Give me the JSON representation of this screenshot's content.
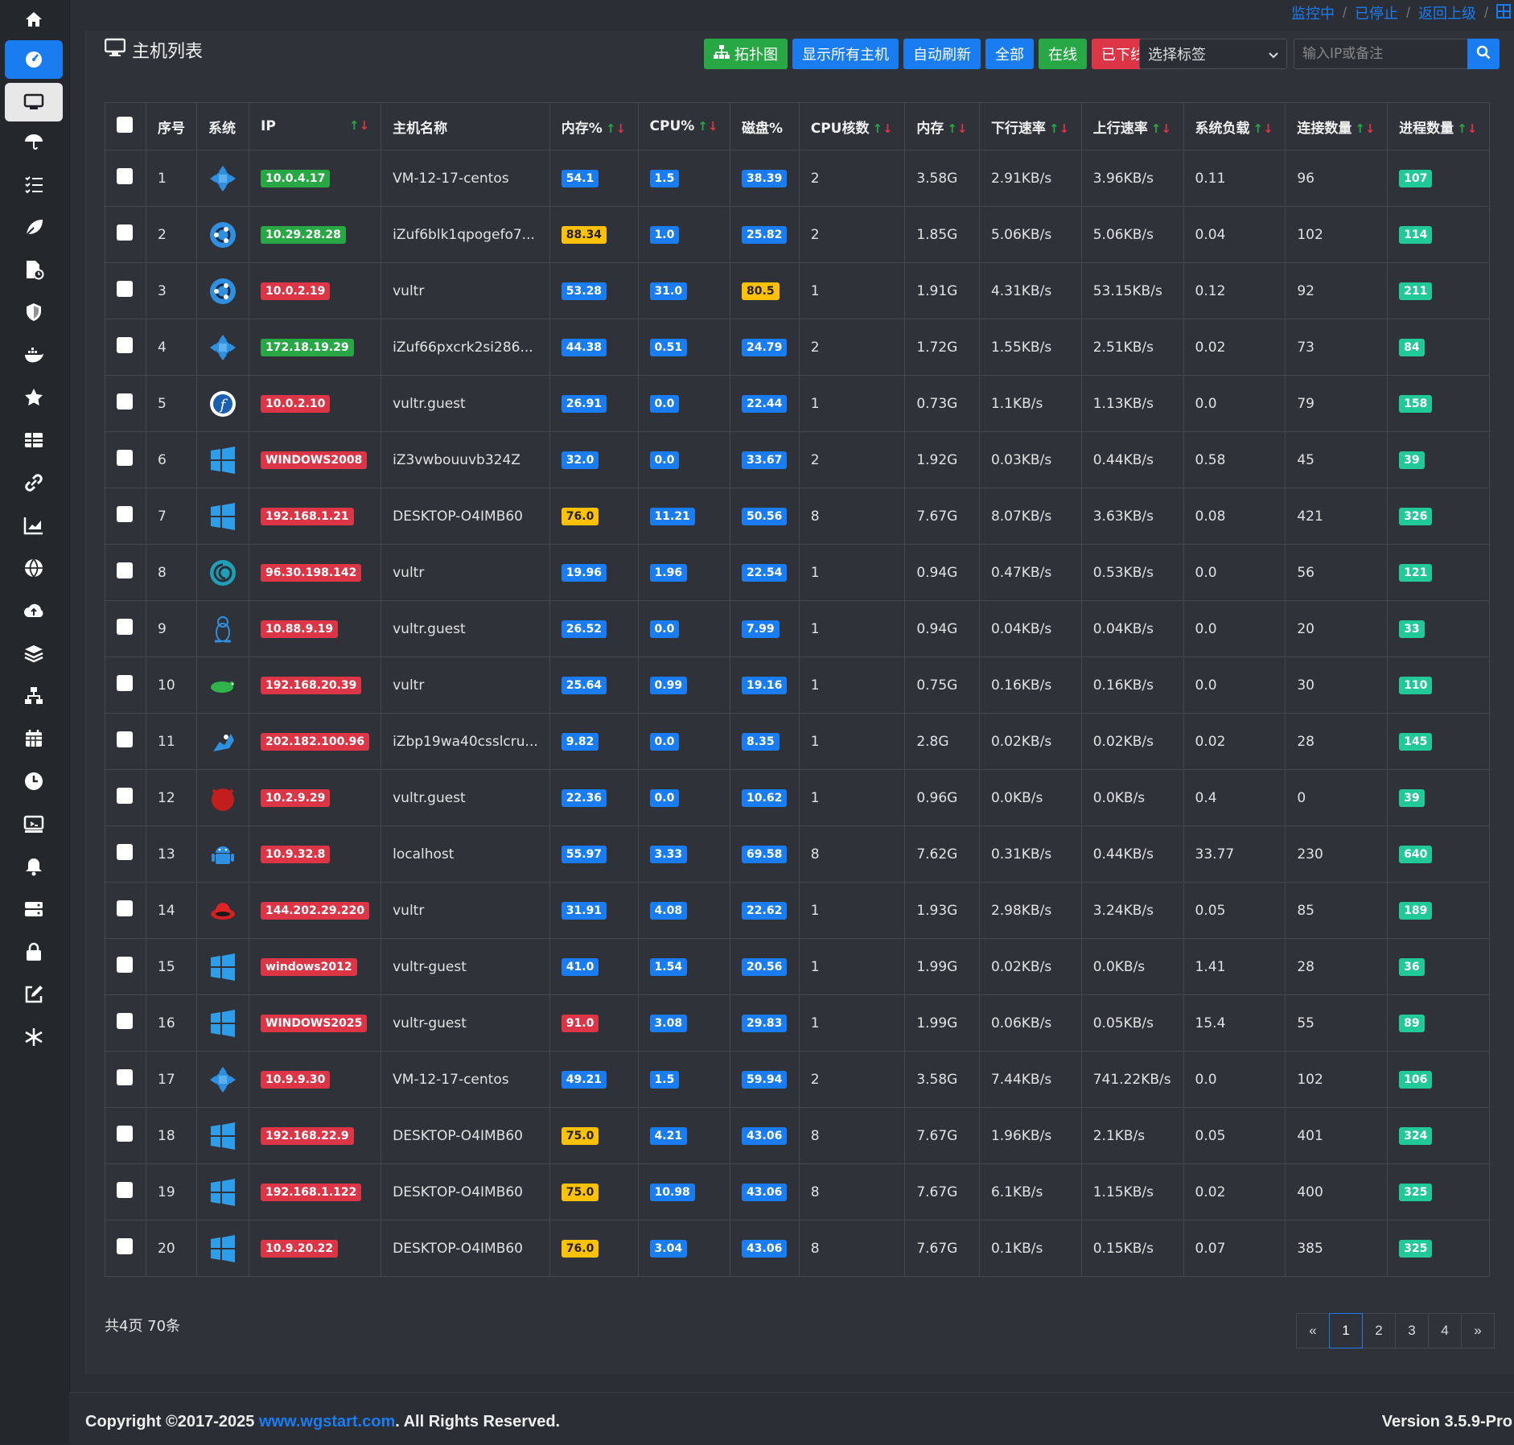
{
  "breadcrumb": {
    "items": [
      "监控中",
      "已停止",
      "返回上级"
    ]
  },
  "page": {
    "title": "主机列表"
  },
  "toolbar": {
    "topology": "拓扑图",
    "show_all": "显示所有主机",
    "auto_refresh": "自动刷新",
    "all": "全部",
    "online": "在线",
    "offline": "已下线",
    "tag_select": "选择标签",
    "search_placeholder": "输入IP或备注"
  },
  "colors": {
    "accent": "#1a7cf1",
    "green": "#28a745",
    "red": "#dc3545",
    "yellow": "#ffc107",
    "teal": "#20c997"
  },
  "table": {
    "headers": {
      "index": "序号",
      "os": "系统",
      "ip": "IP",
      "hostname": "主机名称",
      "mem_pct": "内存%",
      "cpu_pct": "CPU%",
      "disk_pct": "磁盘%",
      "cpu_cores": "CPU核数",
      "mem": "内存",
      "down": "下行速率",
      "up": "上行速率",
      "load": "系统负载",
      "conns": "连接数量",
      "procs": "进程数量"
    },
    "rows": [
      {
        "idx": "1",
        "os": "centos",
        "ip": "10.0.4.17",
        "ip_c": "green",
        "host": "VM-12-17-centos",
        "mem_p": "54.1",
        "mem_c": "blue",
        "cpu": "1.5",
        "cpu_c": "blue",
        "disk": "38.39",
        "disk_c": "blue",
        "cores": "2",
        "mem": "3.58G",
        "down": "2.91KB/s",
        "up": "3.96KB/s",
        "load": "0.11",
        "conns": "96",
        "procs": "107"
      },
      {
        "idx": "2",
        "os": "ubuntu",
        "ip": "10.29.28.28",
        "ip_c": "green",
        "host": "iZuf6blk1qpogefo7...",
        "mem_p": "88.34",
        "mem_c": "yellow",
        "cpu": "1.0",
        "cpu_c": "blue",
        "disk": "25.82",
        "disk_c": "blue",
        "cores": "2",
        "mem": "1.85G",
        "down": "5.06KB/s",
        "up": "5.06KB/s",
        "load": "0.04",
        "conns": "102",
        "procs": "114"
      },
      {
        "idx": "3",
        "os": "ubuntu",
        "ip": "10.0.2.19",
        "ip_c": "red",
        "host": "vultr",
        "mem_p": "53.28",
        "mem_c": "blue",
        "cpu": "31.0",
        "cpu_c": "blue",
        "disk": "80.5",
        "disk_c": "yellow",
        "cores": "1",
        "mem": "1.91G",
        "down": "4.31KB/s",
        "up": "53.15KB/s",
        "load": "0.12",
        "conns": "92",
        "procs": "211"
      },
      {
        "idx": "4",
        "os": "centos",
        "ip": "172.18.19.29",
        "ip_c": "green",
        "host": "iZuf66pxcrk2si286...",
        "mem_p": "44.38",
        "mem_c": "blue",
        "cpu": "0.51",
        "cpu_c": "blue",
        "disk": "24.79",
        "disk_c": "blue",
        "cores": "2",
        "mem": "1.72G",
        "down": "1.55KB/s",
        "up": "2.51KB/s",
        "load": "0.02",
        "conns": "73",
        "procs": "84"
      },
      {
        "idx": "5",
        "os": "fedora",
        "ip": "10.0.2.10",
        "ip_c": "red",
        "host": "vultr.guest",
        "mem_p": "26.91",
        "mem_c": "blue",
        "cpu": "0.0",
        "cpu_c": "blue",
        "disk": "22.44",
        "disk_c": "blue",
        "cores": "1",
        "mem": "0.73G",
        "down": "1.1KB/s",
        "up": "1.13KB/s",
        "load": "0.0",
        "conns": "79",
        "procs": "158"
      },
      {
        "idx": "6",
        "os": "windows",
        "ip": "WINDOWS2008",
        "ip_c": "red",
        "host": "iZ3vwbouuvb324Z",
        "mem_p": "32.0",
        "mem_c": "blue",
        "cpu": "0.0",
        "cpu_c": "blue",
        "disk": "33.67",
        "disk_c": "blue",
        "cores": "2",
        "mem": "1.92G",
        "down": "0.03KB/s",
        "up": "0.44KB/s",
        "load": "0.58",
        "conns": "45",
        "procs": "39"
      },
      {
        "idx": "7",
        "os": "windows",
        "ip": "192.168.1.21",
        "ip_c": "red",
        "host": "DESKTOP-O4IMB60",
        "mem_p": "76.0",
        "mem_c": "yellow",
        "cpu": "11.21",
        "cpu_c": "blue",
        "disk": "50.56",
        "disk_c": "blue",
        "cores": "8",
        "mem": "7.67G",
        "down": "8.07KB/s",
        "up": "3.63KB/s",
        "load": "0.08",
        "conns": "421",
        "procs": "326"
      },
      {
        "idx": "8",
        "os": "debian",
        "ip": "96.30.198.142",
        "ip_c": "red",
        "host": "vultr",
        "mem_p": "19.96",
        "mem_c": "blue",
        "cpu": "1.96",
        "cpu_c": "blue",
        "disk": "22.54",
        "disk_c": "blue",
        "cores": "1",
        "mem": "0.94G",
        "down": "0.47KB/s",
        "up": "0.53KB/s",
        "load": "0.0",
        "conns": "56",
        "procs": "121"
      },
      {
        "idx": "9",
        "os": "linux",
        "ip": "10.88.9.19",
        "ip_c": "red",
        "host": "vultr.guest",
        "mem_p": "26.52",
        "mem_c": "blue",
        "cpu": "0.0",
        "cpu_c": "blue",
        "disk": "7.99",
        "disk_c": "blue",
        "cores": "1",
        "mem": "0.94G",
        "down": "0.04KB/s",
        "up": "0.04KB/s",
        "load": "0.0",
        "conns": "20",
        "procs": "33"
      },
      {
        "idx": "10",
        "os": "suse",
        "ip": "192.168.20.39",
        "ip_c": "red",
        "host": "vultr",
        "mem_p": "25.64",
        "mem_c": "blue",
        "cpu": "0.99",
        "cpu_c": "blue",
        "disk": "19.16",
        "disk_c": "blue",
        "cores": "1",
        "mem": "0.75G",
        "down": "0.16KB/s",
        "up": "0.16KB/s",
        "load": "0.0",
        "conns": "30",
        "procs": "110"
      },
      {
        "idx": "11",
        "os": "freebsd",
        "ip": "202.182.100.96",
        "ip_c": "red",
        "host": "iZbp19wa40csslcru...",
        "mem_p": "9.82",
        "mem_c": "blue",
        "cpu": "0.0",
        "cpu_c": "blue",
        "disk": "8.35",
        "disk_c": "blue",
        "cores": "1",
        "mem": "2.8G",
        "down": "0.02KB/s",
        "up": "0.02KB/s",
        "load": "0.02",
        "conns": "28",
        "procs": "145"
      },
      {
        "idx": "12",
        "os": "bsd",
        "ip": "10.2.9.29",
        "ip_c": "red",
        "host": "vultr.guest",
        "mem_p": "22.36",
        "mem_c": "blue",
        "cpu": "0.0",
        "cpu_c": "blue",
        "disk": "10.62",
        "disk_c": "blue",
        "cores": "1",
        "mem": "0.96G",
        "down": "0.0KB/s",
        "up": "0.0KB/s",
        "load": "0.4",
        "conns": "0",
        "procs": "39"
      },
      {
        "idx": "13",
        "os": "android",
        "ip": "10.9.32.8",
        "ip_c": "red",
        "host": "localhost",
        "mem_p": "55.97",
        "mem_c": "blue",
        "cpu": "3.33",
        "cpu_c": "blue",
        "disk": "69.58",
        "disk_c": "blue",
        "cores": "8",
        "mem": "7.62G",
        "down": "0.31KB/s",
        "up": "0.44KB/s",
        "load": "33.77",
        "conns": "230",
        "procs": "640"
      },
      {
        "idx": "14",
        "os": "redhat",
        "ip": "144.202.29.220",
        "ip_c": "red",
        "host": "vultr",
        "mem_p": "31.91",
        "mem_c": "blue",
        "cpu": "4.08",
        "cpu_c": "blue",
        "disk": "22.62",
        "disk_c": "blue",
        "cores": "1",
        "mem": "1.93G",
        "down": "2.98KB/s",
        "up": "3.24KB/s",
        "load": "0.05",
        "conns": "85",
        "procs": "189"
      },
      {
        "idx": "15",
        "os": "windows",
        "ip": "windows2012",
        "ip_c": "red",
        "host": "vultr-guest",
        "mem_p": "41.0",
        "mem_c": "blue",
        "cpu": "1.54",
        "cpu_c": "blue",
        "disk": "20.56",
        "disk_c": "blue",
        "cores": "1",
        "mem": "1.99G",
        "down": "0.02KB/s",
        "up": "0.0KB/s",
        "load": "1.41",
        "conns": "28",
        "procs": "36"
      },
      {
        "idx": "16",
        "os": "windows",
        "ip": "WINDOWS2025",
        "ip_c": "red",
        "host": "vultr-guest",
        "mem_p": "91.0",
        "mem_c": "red",
        "cpu": "3.08",
        "cpu_c": "blue",
        "disk": "29.83",
        "disk_c": "blue",
        "cores": "1",
        "mem": "1.99G",
        "down": "0.06KB/s",
        "up": "0.05KB/s",
        "load": "15.4",
        "conns": "55",
        "procs": "89"
      },
      {
        "idx": "17",
        "os": "centos",
        "ip": "10.9.9.30",
        "ip_c": "red",
        "host": "VM-12-17-centos",
        "mem_p": "49.21",
        "mem_c": "blue",
        "cpu": "1.5",
        "cpu_c": "blue",
        "disk": "59.94",
        "disk_c": "blue",
        "cores": "2",
        "mem": "3.58G",
        "down": "7.44KB/s",
        "up": "741.22KB/s",
        "load": "0.0",
        "conns": "102",
        "procs": "106"
      },
      {
        "idx": "18",
        "os": "windows",
        "ip": "192.168.22.9",
        "ip_c": "red",
        "host": "DESKTOP-O4IMB60",
        "mem_p": "75.0",
        "mem_c": "yellow",
        "cpu": "4.21",
        "cpu_c": "blue",
        "disk": "43.06",
        "disk_c": "blue",
        "cores": "8",
        "mem": "7.67G",
        "down": "1.96KB/s",
        "up": "2.1KB/s",
        "load": "0.05",
        "conns": "401",
        "procs": "324"
      },
      {
        "idx": "19",
        "os": "windows",
        "ip": "192.168.1.122",
        "ip_c": "red",
        "host": "DESKTOP-O4IMB60",
        "mem_p": "75.0",
        "mem_c": "yellow",
        "cpu": "10.98",
        "cpu_c": "blue",
        "disk": "43.06",
        "disk_c": "blue",
        "cores": "8",
        "mem": "7.67G",
        "down": "6.1KB/s",
        "up": "1.15KB/s",
        "load": "0.02",
        "conns": "400",
        "procs": "325"
      },
      {
        "idx": "20",
        "os": "windows",
        "ip": "10.9.20.22",
        "ip_c": "red",
        "host": "DESKTOP-O4IMB60",
        "mem_p": "76.0",
        "mem_c": "yellow",
        "cpu": "3.04",
        "cpu_c": "blue",
        "disk": "43.06",
        "disk_c": "blue",
        "cores": "8",
        "mem": "7.67G",
        "down": "0.1KB/s",
        "up": "0.15KB/s",
        "load": "0.07",
        "conns": "385",
        "procs": "325"
      }
    ]
  },
  "pagination": {
    "summary": "共4页 70条",
    "prev": "«",
    "pages": [
      "1",
      "2",
      "3",
      "4"
    ],
    "current": "1",
    "next": "»"
  },
  "footer": {
    "copyright_prefix": "Copyright ©2017-2025 ",
    "site": "www.wgstart.com",
    "copyright_suffix": ". All Rights Reserved.",
    "version": "Version 3.5.9-Pro"
  },
  "sidebar": {
    "icons": [
      "home-icon",
      "dashboard-icon",
      "monitor-icon",
      "umbrella-icon",
      "tasks-icon",
      "leaf-icon",
      "file-clock-icon",
      "shield-icon",
      "docker-icon",
      "star-icon",
      "grid-icon",
      "link-icon",
      "chart-icon",
      "globe-icon",
      "cloud-upload-icon",
      "layers-icon",
      "network-icon",
      "calendar-icon",
      "clock-icon",
      "remote-icon",
      "bell-icon",
      "server-icon",
      "lock-icon",
      "edit-icon",
      "snowflake-icon"
    ]
  }
}
